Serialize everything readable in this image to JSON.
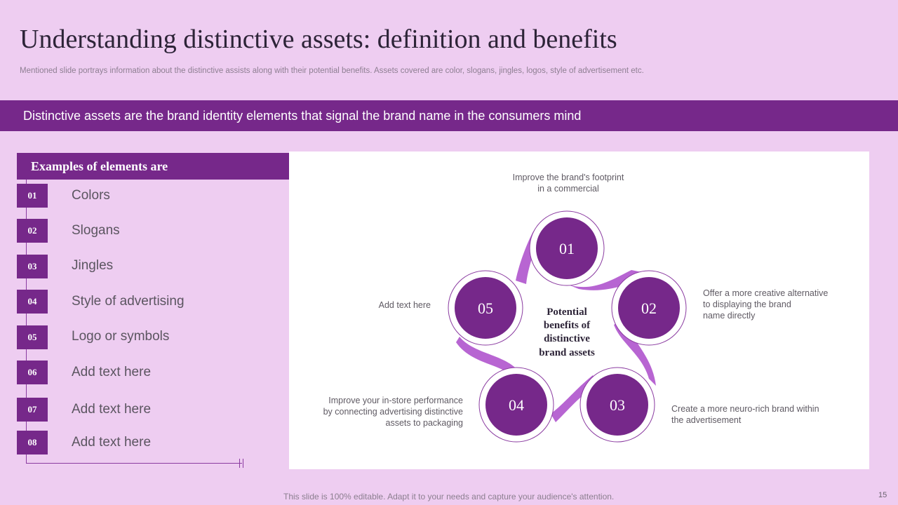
{
  "slide": {
    "title": "Understanding distinctive assets: definition and benefits",
    "subtitle": "Mentioned slide portrays information about the distinctive assists along with their potential benefits. Assets covered are color, slogans, jingles, logos, style of advertisement etc.",
    "banner": "Distinctive assets are the brand identity elements that signal the brand name in the consumers mind",
    "footer": "This slide is 100% editable. Adapt it to your needs and capture your audience's attention.",
    "page_number": "15"
  },
  "examples": {
    "header": "Examples of elements are",
    "items": [
      {
        "num": "01",
        "label": "Colors"
      },
      {
        "num": "02",
        "label": "Slogans"
      },
      {
        "num": "03",
        "label": "Jingles"
      },
      {
        "num": "04",
        "label": "Style of advertising"
      },
      {
        "num": "05",
        "label": "Logo or symbols"
      },
      {
        "num": "06",
        "label": "Add text here"
      },
      {
        "num": "07",
        "label": "Add text here"
      },
      {
        "num": "08",
        "label": "Add text here"
      }
    ]
  },
  "diagram": {
    "center_lines": [
      "Potential",
      "benefits of",
      "distinctive",
      "brand assets"
    ],
    "nodes": [
      "01",
      "02",
      "03",
      "04",
      "05"
    ],
    "annotations": {
      "n01": [
        "Improve the brand's footprint",
        "in a commercial"
      ],
      "n02": [
        "Offer a more creative alternative",
        "to displaying the brand",
        "name directly"
      ],
      "n03": [
        "Create a more neuro-rich brand within",
        "the advertisement"
      ],
      "n04": [
        "Improve your in-store performance",
        "by connecting advertising distinctive",
        "assets to packaging"
      ],
      "n05": [
        "Add text here"
      ]
    }
  },
  "colors": {
    "background": "#eecdf1",
    "primary": "#76288a",
    "ribbon": "#b45dd0",
    "panel": "#ffffff"
  }
}
